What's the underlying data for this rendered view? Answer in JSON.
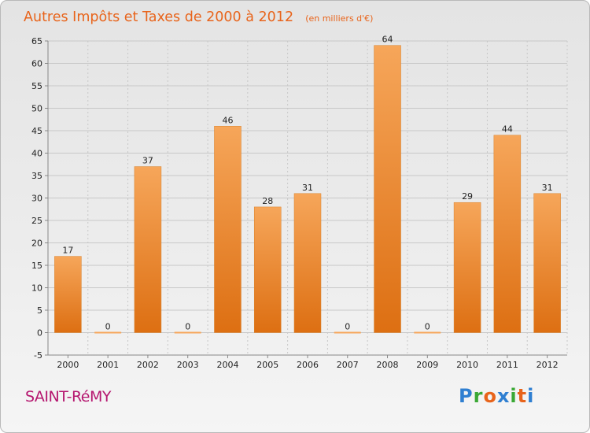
{
  "title": "Autres Impôts et Taxes de 2000 à 2012",
  "unit_label": "(en milliers d'€)",
  "commune": "SAINT-RéMY",
  "brand": {
    "text": "Proxiti",
    "colors": [
      "#2f7fd1",
      "#3aa835",
      "#e8641b",
      "#2f7fd1",
      "#3aa835",
      "#e8641b",
      "#2f7fd1"
    ]
  },
  "colors": {
    "bar_top": "#f6a65a",
    "bar_bottom": "#dd6f12",
    "title": "#e8641b",
    "grid": "#c8c8c8",
    "commune": "#b5166f"
  },
  "chart_data": {
    "type": "bar",
    "title": "Autres Impôts et Taxes de 2000 à 2012",
    "subtitle": "(en milliers d'€)",
    "xlabel": "",
    "ylabel": "",
    "categories": [
      "2000",
      "2001",
      "2002",
      "2003",
      "2004",
      "2005",
      "2006",
      "2007",
      "2008",
      "2009",
      "2010",
      "2011",
      "2012"
    ],
    "values": [
      17,
      0,
      37,
      0,
      46,
      28,
      31,
      0,
      64,
      0,
      29,
      44,
      31
    ],
    "ylim": [
      -5,
      65
    ],
    "yticks": [
      -5,
      0,
      5,
      10,
      15,
      20,
      25,
      30,
      35,
      40,
      45,
      50,
      55,
      60,
      65
    ],
    "grid": true,
    "legend": "none"
  }
}
